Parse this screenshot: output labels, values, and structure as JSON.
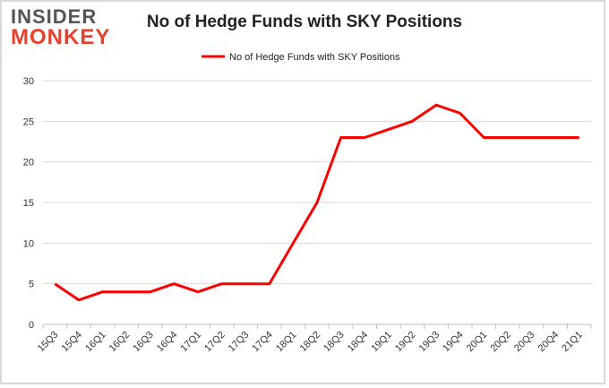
{
  "logo": {
    "line1": "INSIDER",
    "line2": "MONKEY"
  },
  "chart_data": {
    "type": "line",
    "title": "No of Hedge Funds with SKY Positions",
    "xlabel": "",
    "ylabel": "",
    "categories": [
      "15Q3",
      "15Q4",
      "16Q1",
      "16Q2",
      "16Q3",
      "16Q4",
      "17Q1",
      "17Q2",
      "17Q3",
      "17Q4",
      "18Q1",
      "18Q2",
      "18Q3",
      "18Q4",
      "19Q1",
      "19Q2",
      "19Q3",
      "19Q4",
      "20Q1",
      "20Q2",
      "20Q3",
      "20Q4",
      "21Q1"
    ],
    "series": [
      {
        "name": "No of Hedge Funds with SKY Positions",
        "values": [
          5,
          3,
          4,
          4,
          4,
          5,
          4,
          5,
          5,
          5,
          10,
          15,
          23,
          23,
          24,
          25,
          27,
          26,
          23,
          23,
          23,
          23,
          23
        ],
        "color": "#ff0000"
      }
    ],
    "ylim": [
      0,
      30
    ],
    "yticks": [
      0,
      5,
      10,
      15,
      20,
      25,
      30
    ],
    "grid": true,
    "legend": "top-center"
  }
}
